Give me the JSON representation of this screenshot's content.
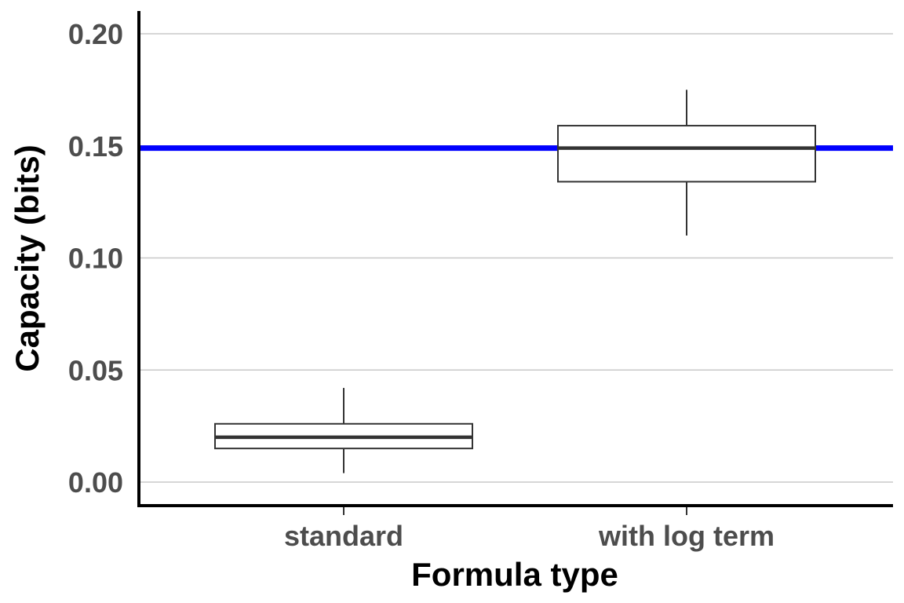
{
  "chart_data": {
    "type": "boxplot",
    "xlabel": "Formula type",
    "ylabel": "Capacity (bits)",
    "categories": [
      "standard",
      "with log term"
    ],
    "y_ticks": [
      {
        "value": 0.0,
        "label": "0.00"
      },
      {
        "value": 0.05,
        "label": "0.05"
      },
      {
        "value": 0.1,
        "label": "0.10"
      },
      {
        "value": 0.15,
        "label": "0.15"
      },
      {
        "value": 0.2,
        "label": "0.20"
      }
    ],
    "ylim": [
      -0.01,
      0.21
    ],
    "boxes": [
      {
        "category": "standard",
        "min": 0.004,
        "q1": 0.015,
        "median": 0.02,
        "q3": 0.026,
        "max": 0.042
      },
      {
        "category": "with log term",
        "min": 0.11,
        "q1": 0.134,
        "median": 0.149,
        "q3": 0.159,
        "max": 0.175
      }
    ],
    "reference_line": {
      "y": 0.149,
      "color": "#0000ff"
    },
    "grid": "horizontal major"
  }
}
